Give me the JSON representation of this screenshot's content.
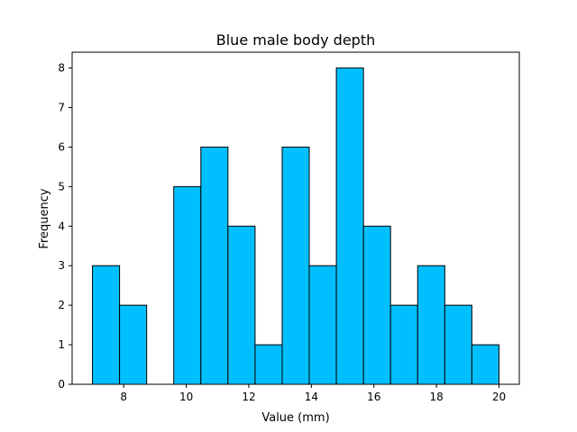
{
  "chart_data": {
    "type": "bar",
    "title": "Blue male body depth",
    "xlabel": "Value (mm)",
    "ylabel": "Frequency",
    "bar_color": "#00bfff",
    "edge_color": "#000000",
    "xlim": [
      6.35,
      20.65
    ],
    "ylim": [
      0,
      8.4
    ],
    "x_ticks": [
      8,
      10,
      12,
      14,
      16,
      18,
      20
    ],
    "y_ticks": [
      0,
      1,
      2,
      3,
      4,
      5,
      6,
      7,
      8
    ],
    "bin_edges": [
      7.0,
      7.867,
      8.733,
      9.6,
      10.467,
      11.333,
      12.2,
      13.067,
      13.933,
      14.8,
      15.667,
      16.533,
      17.4,
      18.267,
      19.133,
      20.0
    ],
    "values": [
      3,
      2,
      0,
      5,
      6,
      4,
      1,
      6,
      3,
      8,
      4,
      2,
      3,
      2,
      1
    ],
    "grid": false,
    "legend": "none"
  }
}
